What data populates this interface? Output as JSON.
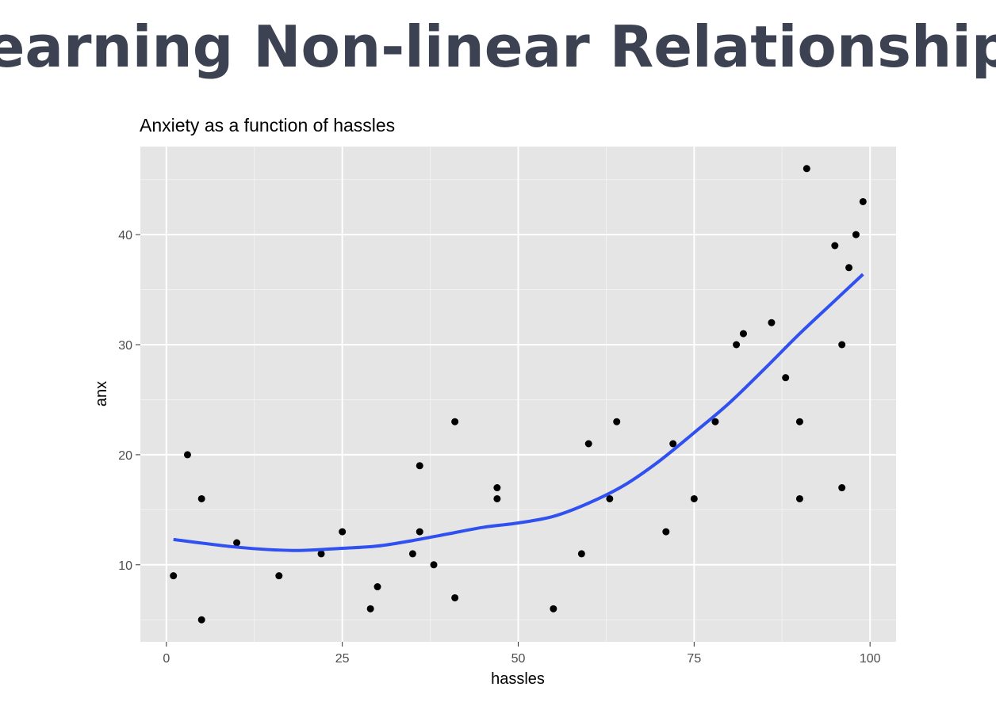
{
  "slide_title": "Learning Non-linear Relationships",
  "chart_data": {
    "type": "scatter",
    "title": "Anxiety as a function of hassles",
    "xlabel": "hassles",
    "ylabel": "anx",
    "xlim": [
      -3.7,
      103.7
    ],
    "ylim": [
      3.0,
      48.0
    ],
    "xticks": [
      0,
      25,
      50,
      75,
      100
    ],
    "yticks": [
      10,
      20,
      30,
      40
    ],
    "xminor": [
      12.5,
      37.5,
      62.5,
      87.5
    ],
    "yminor": [
      5,
      15,
      25,
      35,
      45
    ],
    "grid": true,
    "points": {
      "color": "#000000",
      "x": [
        1,
        3,
        5,
        5,
        10,
        16,
        22,
        25,
        29,
        30,
        35,
        36,
        36,
        38,
        41,
        41,
        47,
        47,
        55,
        59,
        60,
        63,
        64,
        71,
        72,
        75,
        78,
        81,
        82,
        86,
        88,
        90,
        90,
        91,
        95,
        96,
        96,
        97,
        98,
        99
      ],
      "y": [
        9,
        20,
        16,
        5,
        12,
        9,
        11,
        13,
        6,
        8,
        11,
        19,
        13,
        10,
        23,
        7,
        17,
        16,
        6,
        11,
        21,
        16,
        23,
        13,
        21,
        16,
        23,
        30,
        31,
        32,
        27,
        23,
        16,
        46,
        39,
        30,
        17,
        37,
        40,
        43
      ]
    },
    "smooth": {
      "color": "#3050f0",
      "x": [
        1,
        10,
        18,
        25,
        30,
        35,
        40,
        45,
        50,
        55,
        60,
        65,
        70,
        75,
        80,
        85,
        90,
        95,
        99
      ],
      "y": [
        12.3,
        11.6,
        11.3,
        11.5,
        11.7,
        12.2,
        12.8,
        13.4,
        13.8,
        14.4,
        15.6,
        17.2,
        19.4,
        22.0,
        24.7,
        27.8,
        31.0,
        34.0,
        36.4
      ]
    }
  }
}
